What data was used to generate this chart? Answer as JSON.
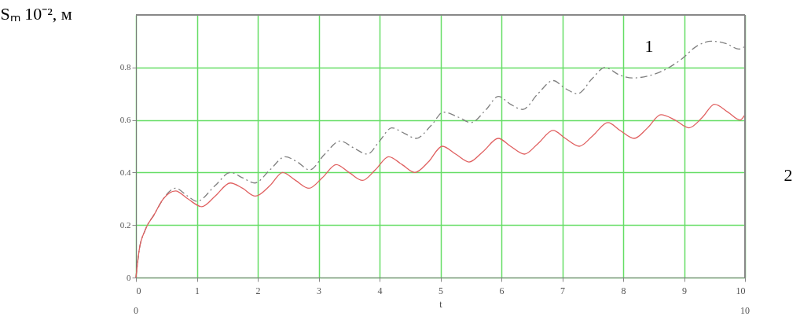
{
  "chart_data": {
    "type": "line",
    "ylabel": "Sₘ 10⁻², м",
    "xlabel": "t",
    "xlim": [
      0,
      10
    ],
    "xticks": [
      0,
      1,
      2,
      3,
      4,
      5,
      6,
      7,
      8,
      9,
      10
    ],
    "ylim": [
      0,
      1.0
    ],
    "yticks": [
      0,
      0.2,
      0.4,
      0.6,
      0.8
    ],
    "grid": true,
    "marker": "none",
    "series": [
      {
        "color": "#808080",
        "line_style": "dashed",
        "x": [
          0,
          0.05,
          0.15,
          0.3,
          0.45,
          0.65,
          0.85,
          1.0,
          1.3,
          1.55,
          1.75,
          1.95,
          2.2,
          2.45,
          2.65,
          2.85,
          3.1,
          3.35,
          3.6,
          3.8,
          4.0,
          4.2,
          4.4,
          4.6,
          4.85,
          5.05,
          5.3,
          5.5,
          5.75,
          5.95,
          6.15,
          6.35,
          6.6,
          6.85,
          7.05,
          7.25,
          7.5,
          7.7,
          7.95,
          8.15,
          8.95,
          9.2,
          9.45,
          9.7,
          9.9,
          10
        ],
        "values": [
          0,
          0.1,
          0.18,
          0.24,
          0.3,
          0.34,
          0.31,
          0.29,
          0.35,
          0.4,
          0.38,
          0.36,
          0.41,
          0.46,
          0.44,
          0.41,
          0.47,
          0.52,
          0.49,
          0.47,
          0.52,
          0.57,
          0.55,
          0.53,
          0.58,
          0.63,
          0.61,
          0.59,
          0.64,
          0.69,
          0.66,
          0.64,
          0.7,
          0.75,
          0.72,
          0.7,
          0.76,
          0.8,
          0.77,
          0.76,
          0.83,
          0.88,
          0.9,
          0.89,
          0.87,
          0.88
        ]
      },
      {
        "color": "#e06060",
        "line_style": "solid",
        "x": [
          0,
          0.05,
          0.15,
          0.3,
          0.45,
          0.65,
          0.85,
          1.08,
          1.3,
          1.55,
          1.75,
          1.96,
          2.2,
          2.41,
          2.62,
          2.84,
          3.06,
          3.29,
          3.5,
          3.72,
          3.93,
          4.15,
          4.37,
          4.58,
          4.8,
          5.03,
          5.25,
          5.47,
          5.7,
          5.95,
          6.15,
          6.38,
          6.6,
          6.85,
          7.05,
          7.28,
          7.5,
          7.75,
          7.95,
          8.18,
          8.4,
          8.62,
          8.85,
          9.08,
          9.3,
          9.5,
          9.72,
          9.92,
          10
        ],
        "values": [
          0,
          0.1,
          0.18,
          0.24,
          0.3,
          0.33,
          0.3,
          0.27,
          0.31,
          0.36,
          0.34,
          0.31,
          0.35,
          0.4,
          0.37,
          0.34,
          0.38,
          0.43,
          0.4,
          0.37,
          0.41,
          0.46,
          0.43,
          0.4,
          0.44,
          0.5,
          0.47,
          0.44,
          0.48,
          0.53,
          0.5,
          0.47,
          0.51,
          0.56,
          0.53,
          0.5,
          0.54,
          0.59,
          0.56,
          0.53,
          0.57,
          0.62,
          0.6,
          0.57,
          0.61,
          0.66,
          0.63,
          0.6,
          0.62
        ]
      }
    ],
    "annotations": [
      "1",
      "2",
      "0",
      "10"
    ]
  }
}
